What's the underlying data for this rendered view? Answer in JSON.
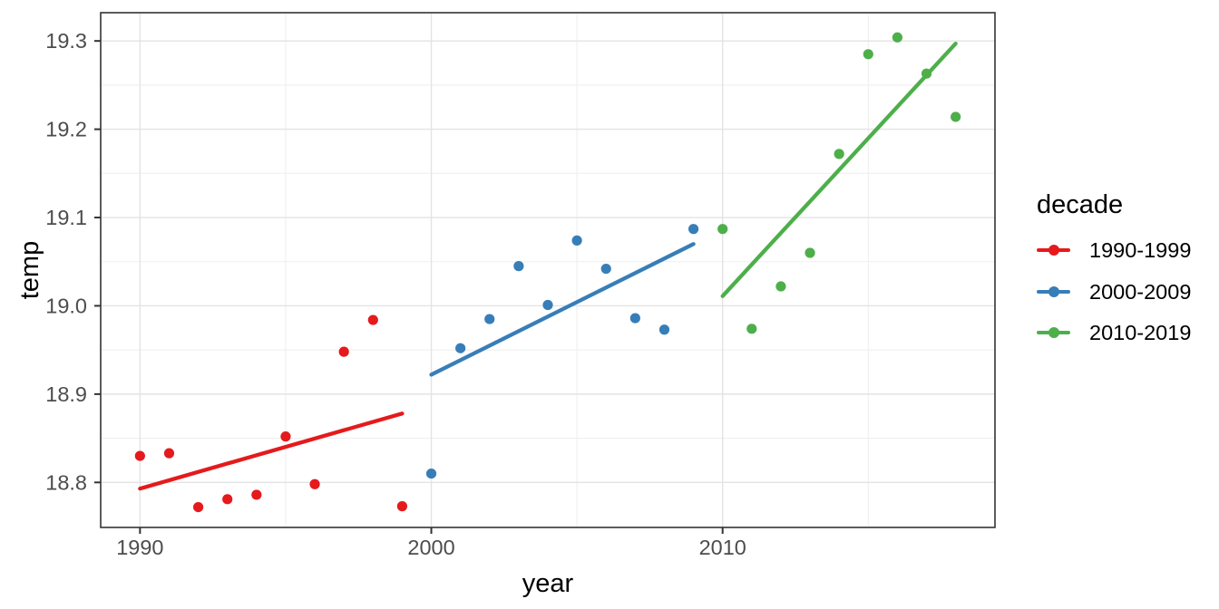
{
  "chart_data": {
    "type": "scatter",
    "title": "",
    "xlabel": "year",
    "ylabel": "temp",
    "x_domain": [
      1988.65,
      2019.35
    ],
    "y_domain": [
      18.749,
      19.332
    ],
    "x_ticks": {
      "values": [
        1990,
        2000,
        2010
      ],
      "labels": [
        "1990",
        "2000",
        "2010"
      ],
      "minor": [
        1995,
        2005,
        2015
      ]
    },
    "y_ticks": {
      "values": [
        18.8,
        18.9,
        19.0,
        19.1,
        19.2,
        19.3
      ],
      "labels": [
        "18.8",
        "18.9",
        "19.0",
        "19.1",
        "19.2",
        "19.3"
      ],
      "minor": [
        18.85,
        18.95,
        19.05,
        19.15,
        19.25
      ]
    },
    "grid": {
      "on": true,
      "major_color": "#e3e3e3",
      "minor_color": "#efefef"
    },
    "panel_border_color": "#343434",
    "axis_text_color": "#4d4d4d",
    "tick_mark_color": "#333333",
    "legend": {
      "title": "decade",
      "position": "right"
    },
    "series": [
      {
        "name": "1990-1999",
        "color": "#E41A1C",
        "points": [
          [
            1990,
            18.83
          ],
          [
            1991,
            18.833
          ],
          [
            1992,
            18.772
          ],
          [
            1993,
            18.781
          ],
          [
            1994,
            18.786
          ],
          [
            1995,
            18.852
          ],
          [
            1996,
            18.798
          ],
          [
            1997,
            18.948
          ],
          [
            1998,
            18.984
          ],
          [
            1999,
            18.773
          ]
        ],
        "trend": [
          [
            1990,
            18.793
          ],
          [
            1999,
            18.878
          ]
        ]
      },
      {
        "name": "2000-2009",
        "color": "#377EB8",
        "points": [
          [
            2000,
            18.81
          ],
          [
            2001,
            18.952
          ],
          [
            2002,
            18.985
          ],
          [
            2003,
            19.045
          ],
          [
            2004,
            19.001
          ],
          [
            2005,
            19.074
          ],
          [
            2006,
            19.042
          ],
          [
            2007,
            18.986
          ],
          [
            2008,
            18.973
          ],
          [
            2009,
            19.087
          ]
        ],
        "trend": [
          [
            2000,
            18.922
          ],
          [
            2009,
            19.07
          ]
        ]
      },
      {
        "name": "2010-2019",
        "color": "#4DAF4A",
        "points": [
          [
            2010,
            19.087
          ],
          [
            2011,
            18.974
          ],
          [
            2012,
            19.022
          ],
          [
            2013,
            19.06
          ],
          [
            2014,
            19.172
          ],
          [
            2015,
            19.285
          ],
          [
            2016,
            19.304
          ],
          [
            2017,
            19.263
          ],
          [
            2018,
            19.214
          ]
        ],
        "trend": [
          [
            2010,
            19.011
          ],
          [
            2018,
            19.297
          ]
        ]
      }
    ]
  }
}
